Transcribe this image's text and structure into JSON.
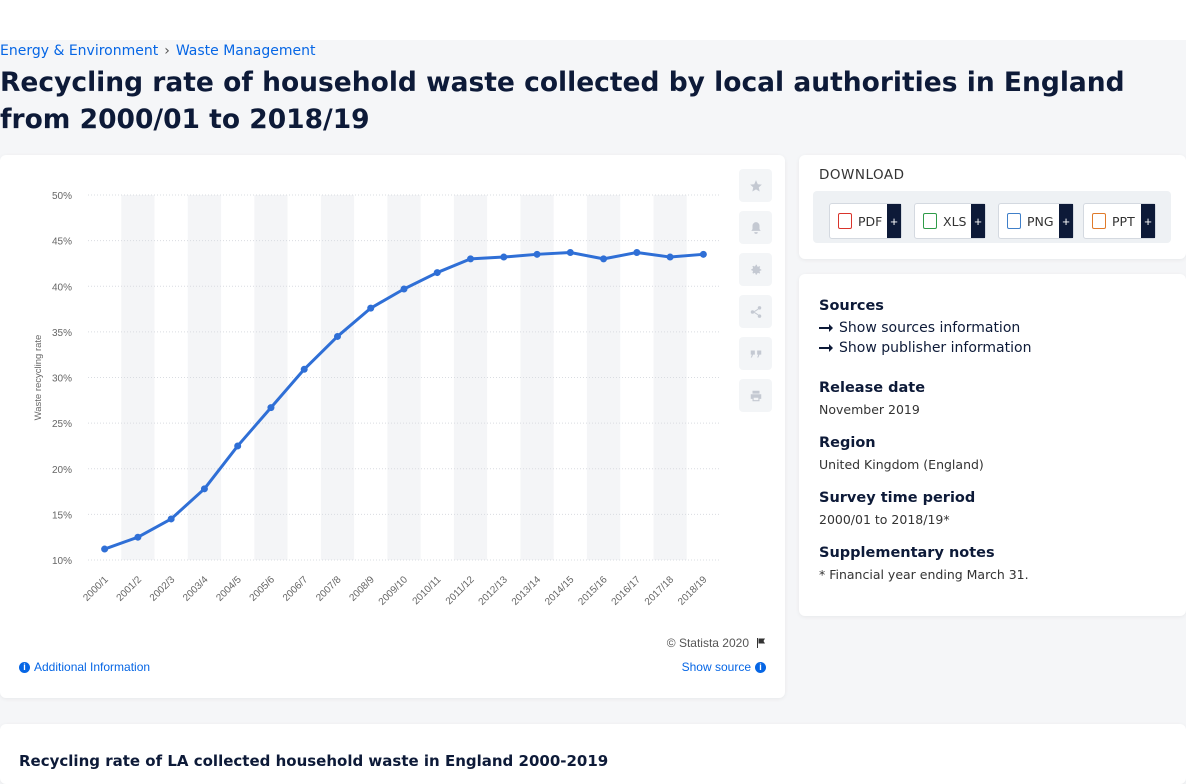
{
  "breadcrumb": {
    "items": [
      "Energy & Environment",
      "Waste Management"
    ],
    "separator": "›"
  },
  "page_title": "Recycling rate of household waste collected by local authorities in England from 2000/01 to 2018/19",
  "chart_data": {
    "type": "line",
    "title": "",
    "xlabel": "",
    "ylabel": "Waste recycling rate",
    "categories": [
      "2000/1",
      "2001/2",
      "2002/3",
      "2003/4",
      "2004/5",
      "2005/6",
      "2006/7",
      "2007/8",
      "2008/9",
      "2009/10",
      "2010/11",
      "2011/12",
      "2012/13",
      "2013/14",
      "2014/15",
      "2015/16",
      "2016/17",
      "2017/18",
      "2018/19"
    ],
    "values": [
      11.2,
      12.5,
      14.5,
      17.8,
      22.5,
      26.7,
      30.9,
      34.5,
      37.6,
      39.7,
      41.5,
      43.0,
      43.2,
      43.5,
      43.7,
      43.0,
      43.7,
      43.2,
      43.5
    ],
    "yticks": [
      "10%",
      "15%",
      "20%",
      "25%",
      "30%",
      "35%",
      "40%",
      "45%",
      "50%"
    ],
    "ylim": [
      10,
      50
    ],
    "series_color": "#2f6fd6",
    "grid": true,
    "legend": "none"
  },
  "chart_footer": {
    "copyright": "© Statista 2020",
    "additional_info": "Additional Information",
    "show_source": "Show source"
  },
  "toolbar": {
    "icons": [
      "star-icon",
      "bell-icon",
      "gear-icon",
      "share-icon",
      "quote-icon",
      "print-icon"
    ]
  },
  "download": {
    "heading": "DOWNLOAD",
    "buttons": [
      {
        "label": "PDF",
        "color": "#d9342b"
      },
      {
        "label": "XLS",
        "color": "#2e9b48"
      },
      {
        "label": "PNG",
        "color": "#3f7fc9"
      },
      {
        "label": "PPT",
        "color": "#e07a2a"
      }
    ],
    "plus": "+"
  },
  "meta": {
    "sources_heading": "Sources",
    "show_sources": "Show sources information",
    "show_publisher": "Show publisher information",
    "release_heading": "Release date",
    "release_value": "November 2019",
    "region_heading": "Region",
    "region_value": "United Kingdom (England)",
    "survey_heading": "Survey time period",
    "survey_value": "2000/01 to 2018/19*",
    "notes_heading": "Supplementary notes",
    "notes_value": "* Financial year ending March 31."
  },
  "bottom": {
    "title": "Recycling rate of LA collected household waste in England 2000-2019"
  }
}
